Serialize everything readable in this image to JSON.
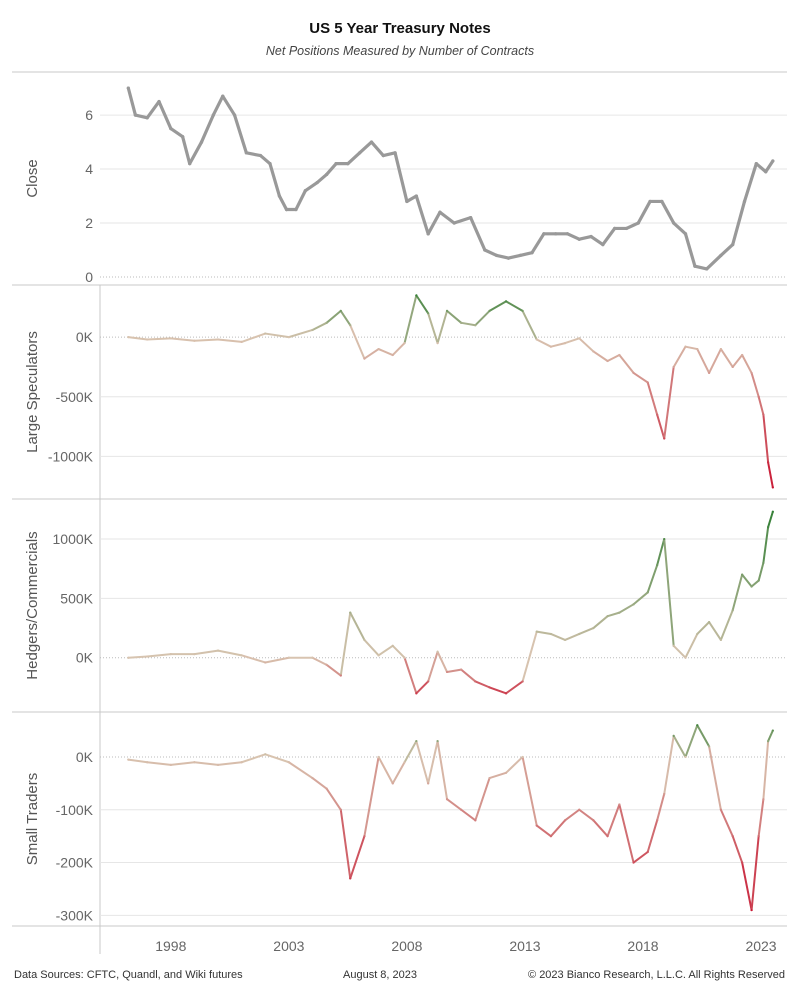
{
  "title": "US 5 Year Treasury Notes",
  "subtitle": "Net Positions Measured by Number of Contracts",
  "footer": {
    "sources": "Data Sources: CFTC, Quandl, and Wiki futures",
    "date": "August 8, 2023",
    "copyright": "© 2023 Bianco Research, L.L.C. All Rights Reserved"
  },
  "colors": {
    "close_line": "#999999",
    "negative": "#c8102e",
    "neutral": "#d8c4b0",
    "positive": "#2e7d32",
    "grid": "#e6e6e6"
  },
  "chart_data": [
    {
      "type": "line",
      "ylabel": "Close",
      "x_ticks": [
        "1998",
        "2003",
        "2008",
        "2013",
        "2018",
        "2023"
      ],
      "y_ticks": [
        "6",
        "4",
        "2",
        "0"
      ],
      "ylim": [
        0,
        7.3
      ],
      "color_scale": "none",
      "x": [
        1996.2,
        1996.5,
        1997.0,
        1997.5,
        1998.0,
        1998.5,
        1998.8,
        1999.3,
        1999.8,
        2000.2,
        2000.7,
        2001.2,
        2001.8,
        2002.2,
        2002.6,
        2002.9,
        2003.3,
        2003.7,
        2004.2,
        2004.6,
        2005.0,
        2005.5,
        2006.0,
        2006.5,
        2007.0,
        2007.5,
        2008.0,
        2008.4,
        2008.9,
        2009.4,
        2010.0,
        2010.7,
        2011.3,
        2011.8,
        2012.3,
        2012.8,
        2013.3,
        2013.8,
        2014.3,
        2014.8,
        2015.3,
        2015.8,
        2016.3,
        2016.8,
        2017.3,
        2017.8,
        2018.3,
        2018.8,
        2019.3,
        2019.8,
        2020.2,
        2020.7,
        2021.3,
        2021.8,
        2022.3,
        2022.8,
        2023.2,
        2023.5
      ],
      "values": [
        7.0,
        6.0,
        5.9,
        6.5,
        5.5,
        5.2,
        4.2,
        5.0,
        6.0,
        6.7,
        6.0,
        4.6,
        4.5,
        4.2,
        3.0,
        2.5,
        2.5,
        3.2,
        3.5,
        3.8,
        4.2,
        4.2,
        4.6,
        5.0,
        4.5,
        4.6,
        2.8,
        3.0,
        1.6,
        2.4,
        2.0,
        2.2,
        1.0,
        0.8,
        0.7,
        0.8,
        0.9,
        1.6,
        1.6,
        1.6,
        1.4,
        1.5,
        1.2,
        1.8,
        1.8,
        2.0,
        2.8,
        2.8,
        2.0,
        1.6,
        0.4,
        0.3,
        0.8,
        1.2,
        2.8,
        4.2,
        3.9,
        4.3
      ]
    },
    {
      "type": "line",
      "ylabel": "Large Speculators",
      "x_ticks": [
        "1998",
        "2003",
        "2008",
        "2013",
        "2018",
        "2023"
      ],
      "y_ticks": [
        "0K",
        "-500K",
        "-1000K"
      ],
      "ylim": [
        -1290000,
        370000
      ],
      "color_scale": "diverging",
      "x": [
        1996.2,
        1997.0,
        1998.0,
        1999.0,
        2000.0,
        2001.0,
        2002.0,
        2003.0,
        2004.0,
        2004.6,
        2005.2,
        2005.6,
        2006.2,
        2006.8,
        2007.4,
        2007.9,
        2008.4,
        2008.9,
        2009.3,
        2009.7,
        2010.3,
        2010.9,
        2011.5,
        2012.2,
        2012.9,
        2013.5,
        2014.1,
        2014.7,
        2015.3,
        2015.9,
        2016.5,
        2017.0,
        2017.6,
        2018.2,
        2018.6,
        2018.9,
        2019.3,
        2019.8,
        2020.3,
        2020.8,
        2021.3,
        2021.8,
        2022.2,
        2022.6,
        2022.9,
        2023.1,
        2023.3,
        2023.5
      ],
      "values": [
        0,
        -20000,
        -10000,
        -30000,
        -20000,
        -40000,
        30000,
        0,
        60000,
        120000,
        220000,
        100000,
        -180000,
        -100000,
        -150000,
        -50000,
        350000,
        200000,
        -50000,
        220000,
        120000,
        100000,
        220000,
        300000,
        220000,
        -20000,
        -80000,
        -50000,
        -10000,
        -120000,
        -200000,
        -150000,
        -300000,
        -380000,
        -650000,
        -850000,
        -250000,
        -80000,
        -100000,
        -300000,
        -100000,
        -250000,
        -150000,
        -300000,
        -500000,
        -650000,
        -1050000,
        -1260000
      ]
    },
    {
      "type": "line",
      "ylabel": "Hedgers/Commercials",
      "x_ticks": [
        "1998",
        "2003",
        "2008",
        "2013",
        "2018",
        "2023"
      ],
      "y_ticks": [
        "1000K",
        "500K",
        "0K"
      ],
      "ylim": [
        -390000,
        1270000
      ],
      "color_scale": "diverging",
      "x": [
        1996.2,
        1997.0,
        1998.0,
        1999.0,
        2000.0,
        2001.0,
        2002.0,
        2003.0,
        2004.0,
        2004.6,
        2005.2,
        2005.6,
        2006.2,
        2006.8,
        2007.4,
        2007.9,
        2008.4,
        2008.9,
        2009.3,
        2009.7,
        2010.3,
        2010.9,
        2011.5,
        2012.2,
        2012.9,
        2013.5,
        2014.1,
        2014.7,
        2015.3,
        2015.9,
        2016.5,
        2017.0,
        2017.6,
        2018.2,
        2018.6,
        2018.9,
        2019.3,
        2019.8,
        2020.3,
        2020.8,
        2021.3,
        2021.8,
        2022.2,
        2022.6,
        2022.9,
        2023.1,
        2023.3,
        2023.5
      ],
      "values": [
        0,
        10000,
        30000,
        30000,
        60000,
        20000,
        -40000,
        0,
        0,
        -60000,
        -150000,
        380000,
        150000,
        20000,
        100000,
        0,
        -300000,
        -200000,
        50000,
        -120000,
        -100000,
        -200000,
        -250000,
        -300000,
        -200000,
        220000,
        200000,
        150000,
        200000,
        250000,
        350000,
        380000,
        450000,
        550000,
        780000,
        1000000,
        100000,
        0,
        200000,
        300000,
        150000,
        400000,
        700000,
        600000,
        650000,
        800000,
        1100000,
        1230000
      ]
    },
    {
      "type": "line",
      "ylabel": "Small Traders",
      "x_ticks": [
        "1998",
        "2003",
        "2008",
        "2013",
        "2018",
        "2023"
      ],
      "y_ticks": [
        "0K",
        "-100K",
        "-200K",
        "-300K"
      ],
      "ylim": [
        -305000,
        70000
      ],
      "color_scale": "diverging",
      "x": [
        1996.2,
        1997.0,
        1998.0,
        1999.0,
        2000.0,
        2001.0,
        2002.0,
        2003.0,
        2004.0,
        2004.6,
        2005.2,
        2005.6,
        2006.2,
        2006.8,
        2007.4,
        2007.9,
        2008.4,
        2008.9,
        2009.3,
        2009.7,
        2010.3,
        2010.9,
        2011.5,
        2012.2,
        2012.9,
        2013.5,
        2014.1,
        2014.7,
        2015.3,
        2015.9,
        2016.5,
        2017.0,
        2017.6,
        2018.2,
        2018.6,
        2018.9,
        2019.3,
        2019.8,
        2020.3,
        2020.8,
        2021.3,
        2021.8,
        2022.2,
        2022.6,
        2022.9,
        2023.1,
        2023.3,
        2023.5
      ],
      "values": [
        -5000,
        -10000,
        -15000,
        -10000,
        -15000,
        -10000,
        5000,
        -10000,
        -40000,
        -60000,
        -100000,
        -230000,
        -150000,
        0,
        -50000,
        -10000,
        30000,
        -50000,
        30000,
        -80000,
        -100000,
        -120000,
        -40000,
        -30000,
        0,
        -130000,
        -150000,
        -120000,
        -100000,
        -120000,
        -150000,
        -90000,
        -200000,
        -180000,
        -120000,
        -70000,
        40000,
        0,
        60000,
        20000,
        -100000,
        -150000,
        -200000,
        -290000,
        -150000,
        -80000,
        30000,
        50000
      ]
    }
  ]
}
